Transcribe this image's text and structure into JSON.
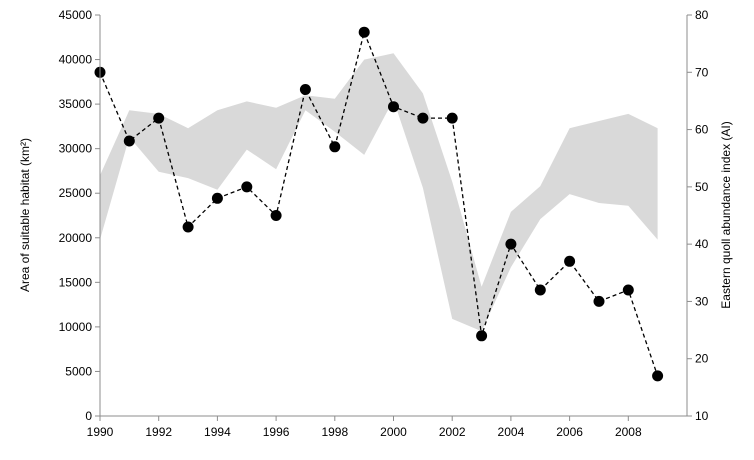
{
  "chart_data": {
    "type": "line",
    "title": "",
    "xlabel": "",
    "ylabel": "Area of suitable habitat (km²)",
    "y2label": "Eastern quoll abundance index (AI)",
    "xlim": [
      1990,
      2010
    ],
    "ylim": [
      0,
      45000
    ],
    "y2lim": [
      10,
      80
    ],
    "x_ticks": [
      1990,
      1992,
      1994,
      1996,
      1998,
      2000,
      2002,
      2004,
      2006,
      2008
    ],
    "y_ticks": [
      0,
      5000,
      10000,
      15000,
      20000,
      25000,
      30000,
      35000,
      40000,
      45000
    ],
    "y2_ticks": [
      10,
      20,
      30,
      40,
      50,
      60,
      70,
      80
    ],
    "grid": false,
    "legend": "none",
    "band": {
      "axis": "left",
      "color": "#d9d9d9",
      "x": [
        1990,
        1991,
        1992,
        1993,
        1994,
        1995,
        1996,
        1997,
        1998,
        1999,
        2000,
        2001,
        2002,
        2003,
        2004,
        2005,
        2006,
        2007,
        2008,
        2009
      ],
      "upper": [
        27000,
        34300,
        33900,
        32300,
        34300,
        35300,
        34600,
        36000,
        35600,
        40000,
        40700,
        36200,
        26300,
        14500,
        22900,
        25800,
        32300,
        33100,
        33900,
        32300
      ],
      "lower": [
        19800,
        31300,
        27400,
        26700,
        25400,
        29900,
        27700,
        34300,
        31900,
        29300,
        35500,
        25600,
        10900,
        9500,
        16700,
        22100,
        24900,
        23900,
        23600,
        19800
      ]
    },
    "series": [
      {
        "axis": "right",
        "style": "dashed-line-with-markers",
        "color": "#000000",
        "x": [
          1990,
          1991,
          1992,
          1993,
          1994,
          1995,
          1996,
          1997,
          1998,
          1999,
          2000,
          2001,
          2002,
          2003,
          2004,
          2005,
          2006,
          2007,
          2008,
          2009
        ],
        "values": [
          70,
          58,
          62,
          43,
          48,
          50,
          45,
          67,
          57,
          77,
          64,
          62,
          62,
          24,
          40,
          32,
          37,
          30,
          32,
          17
        ]
      }
    ]
  }
}
